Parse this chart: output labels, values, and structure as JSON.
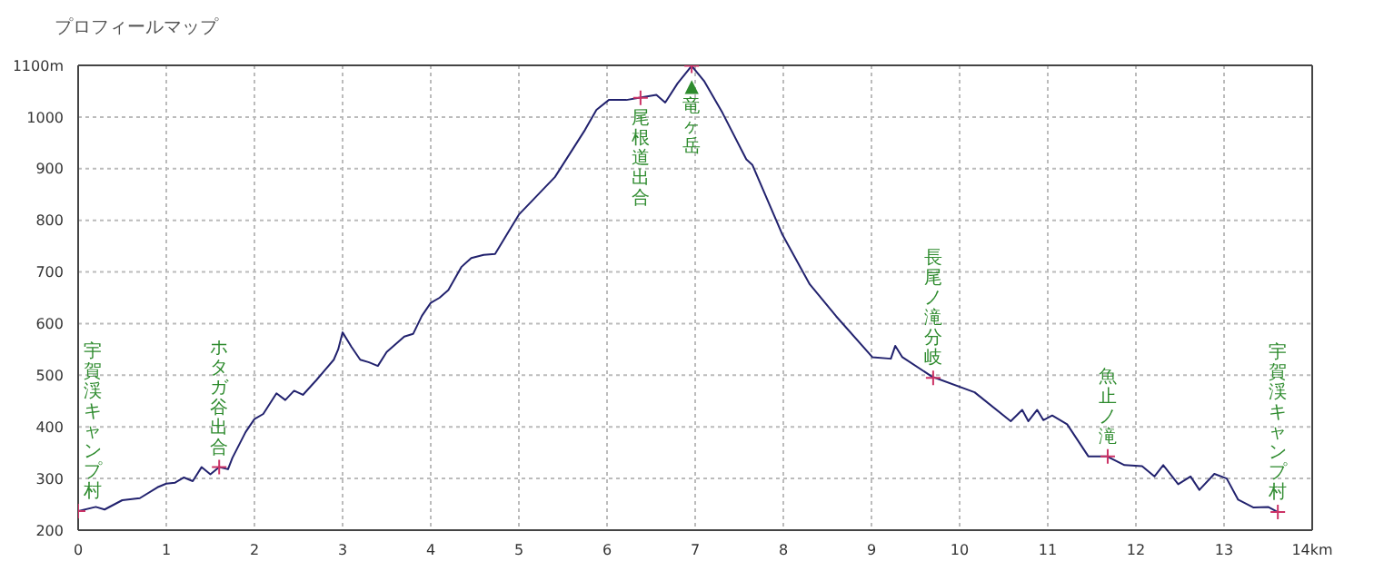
{
  "chart_data": {
    "type": "line",
    "title": "プロフィールマップ",
    "xlim": [
      0,
      14
    ],
    "xticks": [
      0,
      1,
      2,
      3,
      4,
      5,
      6,
      7,
      8,
      9,
      10,
      11,
      12,
      13,
      {
        "value": 14,
        "label": "14km"
      }
    ],
    "ylim": [
      200,
      1100
    ],
    "yticks": [
      200,
      300,
      400,
      500,
      600,
      700,
      800,
      900,
      1000,
      {
        "value": 1100,
        "label": "1100m"
      }
    ],
    "grid": true,
    "series": [
      {
        "color": "#22226e",
        "marker": "none",
        "x": [
          0,
          0.2,
          0.3,
          0.5,
          0.7,
          0.9,
          1.0,
          1.1,
          1.2,
          1.3,
          1.4,
          1.5,
          1.6,
          1.7,
          1.75,
          1.9,
          2.0,
          2.1,
          2.25,
          2.35,
          2.45,
          2.55,
          2.7,
          2.8,
          2.9,
          2.95,
          3.0,
          3.1,
          3.2,
          3.3,
          3.4,
          3.5,
          3.7,
          3.8,
          3.9,
          4.0,
          4.1,
          4.2,
          4.35,
          4.46,
          4.6,
          4.73,
          5.0,
          5.41,
          5.75,
          5.88,
          6.02,
          6.22,
          6.36,
          6.56,
          6.66,
          6.8,
          6.96,
          7.1,
          7.31,
          7.58,
          7.65,
          7.99,
          8.3,
          8.6,
          9.01,
          9.22,
          9.27,
          9.35,
          9.69,
          10.17,
          10.58,
          10.71,
          10.78,
          10.88,
          10.95,
          11.05,
          11.22,
          11.46,
          11.67,
          11.87,
          12.07,
          12.21,
          12.31,
          12.48,
          12.62,
          12.72,
          12.89,
          13.03,
          13.16,
          13.33,
          13.5,
          13.61
        ],
        "values": [
          237,
          245,
          240,
          258,
          262,
          283,
          290,
          292,
          302,
          295,
          322,
          308,
          322,
          318,
          340,
          390,
          415,
          425,
          465,
          452,
          470,
          462,
          490,
          510,
          530,
          550,
          583,
          555,
          530,
          525,
          518,
          545,
          575,
          580,
          615,
          640,
          650,
          665,
          710,
          727,
          733,
          735,
          811,
          884,
          975,
          1014,
          1033,
          1033,
          1037,
          1043,
          1028,
          1065,
          1099,
          1070,
          1008,
          918,
          907,
          772,
          676,
          614,
          535,
          532,
          557,
          535,
          497,
          467,
          411,
          433,
          411,
          433,
          413,
          422,
          405,
          343,
          343,
          326,
          324,
          304,
          326,
          289,
          304,
          278,
          309,
          300,
          259,
          244,
          245,
          235
        ]
      },
      {
        "type": "scatter",
        "color": "#cc3366",
        "marker": "cross",
        "x": [
          0,
          1.6,
          6.38,
          6.96,
          9.7,
          11.68,
          13.61
        ],
        "values": [
          237,
          322,
          1037,
          1099,
          495,
          343,
          235
        ]
      }
    ],
    "annotations": [
      {
        "text": "宇賀渓キャンプ村",
        "x": 0,
        "y": 237
      },
      {
        "text": "ホタガ谷出合",
        "x": 1.6,
        "y": 322
      },
      {
        "text": "尾根道出合",
        "x": 6.38,
        "y": 1037
      },
      {
        "text": "▲竜ヶ岳",
        "x": 6.96,
        "y": 1099
      },
      {
        "text": "長尾ノ滝分岐",
        "x": 9.7,
        "y": 495
      },
      {
        "text": "魚止ノ滝",
        "x": 11.68,
        "y": 343
      },
      {
        "text": "宇賀渓キャンプ村",
        "x": 13.61,
        "y": 235
      }
    ]
  }
}
